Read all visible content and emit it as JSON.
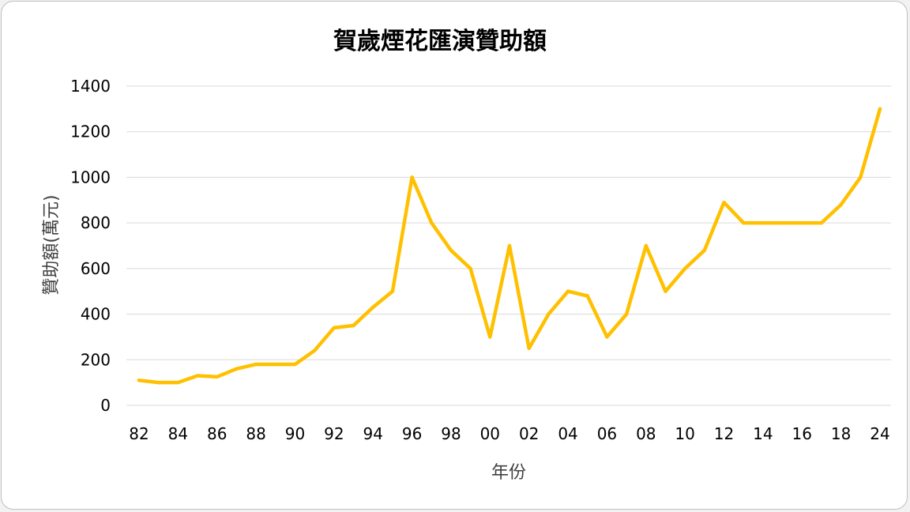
{
  "chart_data": {
    "type": "line",
    "title": "賀歲煙花匯演贊助額",
    "xlabel": "年份",
    "ylabel": "贊助額(萬元)",
    "ylim": [
      0,
      1400
    ],
    "yticks": [
      0,
      200,
      400,
      600,
      800,
      1000,
      1200,
      1400
    ],
    "grid": true,
    "line_color": "#FFC000",
    "x": [
      "82",
      "83",
      "84",
      "85",
      "86",
      "87",
      "88",
      "89",
      "90",
      "91",
      "92",
      "93",
      "94",
      "95",
      "96",
      "97",
      "98",
      "99",
      "00",
      "01",
      "02",
      "03",
      "04",
      "05",
      "06",
      "07",
      "08",
      "09",
      "10",
      "11",
      "12",
      "13",
      "14",
      "15",
      "16",
      "17",
      "18",
      "19",
      "24"
    ],
    "x_tick_labels": [
      "82",
      "84",
      "86",
      "88",
      "90",
      "92",
      "94",
      "96",
      "98",
      "00",
      "02",
      "04",
      "06",
      "08",
      "10",
      "12",
      "14",
      "16",
      "18",
      "24"
    ],
    "series": [
      {
        "values": [
          110,
          100,
          100,
          130,
          125,
          160,
          180,
          180,
          180,
          240,
          340,
          350,
          430,
          500,
          1000,
          800,
          680,
          600,
          300,
          700,
          250,
          400,
          500,
          480,
          300,
          400,
          700,
          500,
          600,
          680,
          890,
          800,
          800,
          800,
          800,
          800,
          880,
          1000,
          1300
        ]
      }
    ]
  }
}
